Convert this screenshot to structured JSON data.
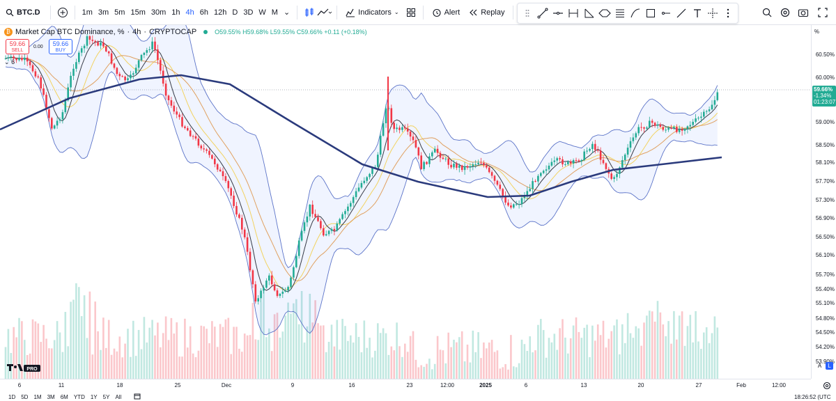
{
  "toolbar": {
    "symbol": "BTC.D",
    "intervals": [
      "1m",
      "3m",
      "5m",
      "15m",
      "30m",
      "1h",
      "4h",
      "6h",
      "12h",
      "D",
      "3D",
      "W",
      "M"
    ],
    "active_interval": "4h",
    "indicators_label": "Indicators",
    "alert_label": "Alert",
    "replay_label": "Replay"
  },
  "legend": {
    "title": "Market Cap BTC Dominance, %",
    "interval": "4h",
    "source": "CRYPTOCAP",
    "separator": " · ",
    "ohlc": "O59.55% H59.68% L59.55% C59.66% +0.11 (+0.18%)"
  },
  "trade": {
    "sell_price": "59.66",
    "sell_label": "SELL",
    "spread": "0.00",
    "buy_price": "59.66",
    "buy_label": "BUY",
    "indicator_count": "6"
  },
  "price_scale": {
    "unit": "%",
    "labels": [
      "60.50%",
      "60.00%",
      "59.00%",
      "58.50%",
      "58.10%",
      "57.70%",
      "57.30%",
      "56.90%",
      "56.50%",
      "56.10%",
      "55.70%",
      "55.40%",
      "55.10%",
      "54.80%",
      "54.50%",
      "54.20%",
      "53.90%"
    ],
    "current_price": "59.66%",
    "current_change": "-1.34%",
    "countdown": "01:23:07",
    "btn_a": "A",
    "btn_l": "L"
  },
  "time_axis": {
    "labels": [
      "6",
      "11",
      "18",
      "25",
      "Dec",
      "9",
      "16",
      "23",
      "12:00",
      "2025",
      "6",
      "13",
      "20",
      "27",
      "Feb",
      "12:00"
    ]
  },
  "bottom_bar": {
    "ranges": [
      "1D",
      "5D",
      "1M",
      "3M",
      "6M",
      "YTD",
      "1Y",
      "5Y",
      "All"
    ],
    "clock": "18:26:52 (UTC"
  },
  "colors": {
    "up": "#22ab94",
    "down": "#f23645",
    "ma_long": "#2a3a7c",
    "accent": "#2962ff"
  }
}
